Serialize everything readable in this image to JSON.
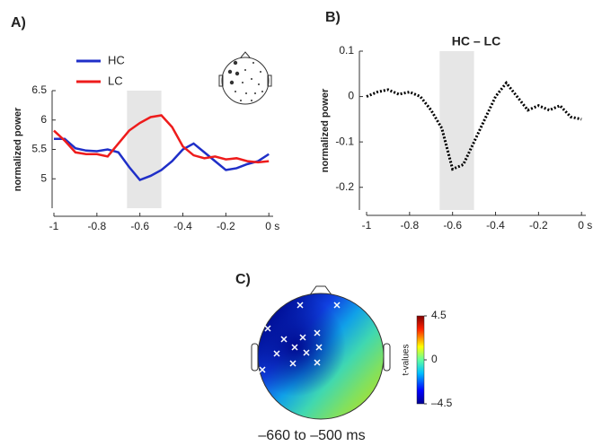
{
  "chart_data": [
    {
      "type": "line",
      "panel": "A)",
      "ylabel": "normalized power",
      "x": [
        -1,
        -0.95,
        -0.9,
        -0.85,
        -0.8,
        -0.75,
        -0.7,
        -0.65,
        -0.6,
        -0.55,
        -0.5,
        -0.45,
        -0.4,
        -0.35,
        -0.3,
        -0.25,
        -0.2,
        -0.15,
        -0.1,
        -0.05,
        0
      ],
      "series": [
        {
          "name": "HC",
          "color": "#1f2fc8",
          "values": [
            5.68,
            5.68,
            5.52,
            5.48,
            5.47,
            5.5,
            5.45,
            5.2,
            4.98,
            5.05,
            5.15,
            5.3,
            5.5,
            5.6,
            5.45,
            5.3,
            5.15,
            5.18,
            5.25,
            5.3,
            5.42
          ]
        },
        {
          "name": "LC",
          "color": "#ee1c1c",
          "values": [
            5.82,
            5.65,
            5.45,
            5.42,
            5.42,
            5.38,
            5.6,
            5.82,
            5.95,
            6.05,
            6.08,
            5.88,
            5.55,
            5.4,
            5.35,
            5.38,
            5.33,
            5.35,
            5.3,
            5.28,
            5.3
          ]
        }
      ],
      "shaded": [
        -0.66,
        -0.5
      ],
      "xlim": [
        -1,
        0.02
      ],
      "xticks": [
        -1,
        -0.8,
        -0.6,
        -0.4,
        -0.2,
        {
          "value": 0,
          "label": "0 s"
        }
      ],
      "ylim": [
        4.5,
        6.5
      ],
      "yticks": [
        5,
        5.5,
        6,
        6.5
      ]
    },
    {
      "type": "line",
      "panel": "B)",
      "title": "HC –  LC",
      "ylabel": "normalized power",
      "x": [
        -1,
        -0.95,
        -0.9,
        -0.85,
        -0.8,
        -0.75,
        -0.7,
        -0.65,
        -0.6,
        -0.55,
        -0.5,
        -0.45,
        -0.4,
        -0.35,
        -0.3,
        -0.25,
        -0.2,
        -0.15,
        -0.1,
        -0.05,
        0
      ],
      "series": [
        {
          "color": "#000000",
          "dotted": true,
          "values": [
            0,
            0.01,
            0.015,
            0.005,
            0.01,
            0,
            -0.03,
            -0.07,
            -0.16,
            -0.15,
            -0.1,
            -0.05,
            0,
            0.03,
            0,
            -0.03,
            -0.02,
            -0.03,
            -0.02,
            -0.045,
            -0.05
          ]
        }
      ],
      "shaded": [
        -0.66,
        -0.5
      ],
      "xlim": [
        -1,
        0.02
      ],
      "xticks": [
        -1,
        -0.8,
        -0.6,
        -0.4,
        -0.2,
        {
          "value": 0,
          "label": "0 s"
        }
      ],
      "ylim": [
        -0.25,
        0.1
      ],
      "yticks": [
        -0.2,
        -0.1,
        0,
        0.1
      ]
    },
    {
      "type": "topoplot",
      "panel": "C)",
      "colorbar_label": "t-values",
      "caption": "–660 to –500 ms",
      "clim": [
        -4.5,
        4.5
      ],
      "cticks": [
        {
          "value": -4.5,
          "label": "–4.5"
        },
        0,
        4.5
      ]
    }
  ]
}
